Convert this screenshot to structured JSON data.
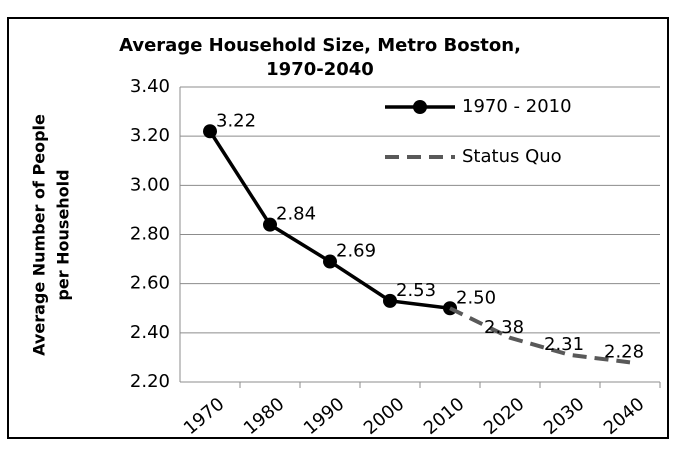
{
  "chart_data": {
    "type": "line",
    "title": [
      "Average Household Size, Metro Boston,",
      "1970-2040"
    ],
    "y_label": [
      "Average Number of People",
      "per Household"
    ],
    "categories": [
      "1970",
      "1980",
      "1990",
      "2000",
      "2010",
      "2020",
      "2030",
      "2040"
    ],
    "series": [
      {
        "name": "1970 - 2010",
        "color": "#000000",
        "dashed": false,
        "markers": true,
        "values": [
          3.22,
          2.84,
          2.69,
          2.53,
          2.5,
          null,
          null,
          null
        ],
        "value_labels": [
          "3.22",
          "2.84",
          "2.69",
          "2.53",
          "2.50",
          null,
          null,
          null
        ]
      },
      {
        "name": "Status Quo",
        "color": "#595959",
        "dashed": true,
        "markers": false,
        "values": [
          null,
          null,
          null,
          null,
          2.5,
          2.38,
          2.31,
          2.28
        ],
        "value_labels": [
          null,
          null,
          null,
          null,
          null,
          "2.38",
          "2.31",
          "2.28"
        ]
      }
    ],
    "ylim": [
      2.2,
      3.4
    ],
    "yticks": [
      {
        "value": 2.2,
        "label": "2.20"
      },
      {
        "value": 2.4,
        "label": "2.40"
      },
      {
        "value": 2.6,
        "label": "2.60"
      },
      {
        "value": 2.8,
        "label": "2.80"
      },
      {
        "value": 3.0,
        "label": "3.00"
      },
      {
        "value": 3.2,
        "label": "3.20"
      },
      {
        "value": 3.4,
        "label": "3.40"
      }
    ],
    "grid": true,
    "legend": "top-right"
  }
}
